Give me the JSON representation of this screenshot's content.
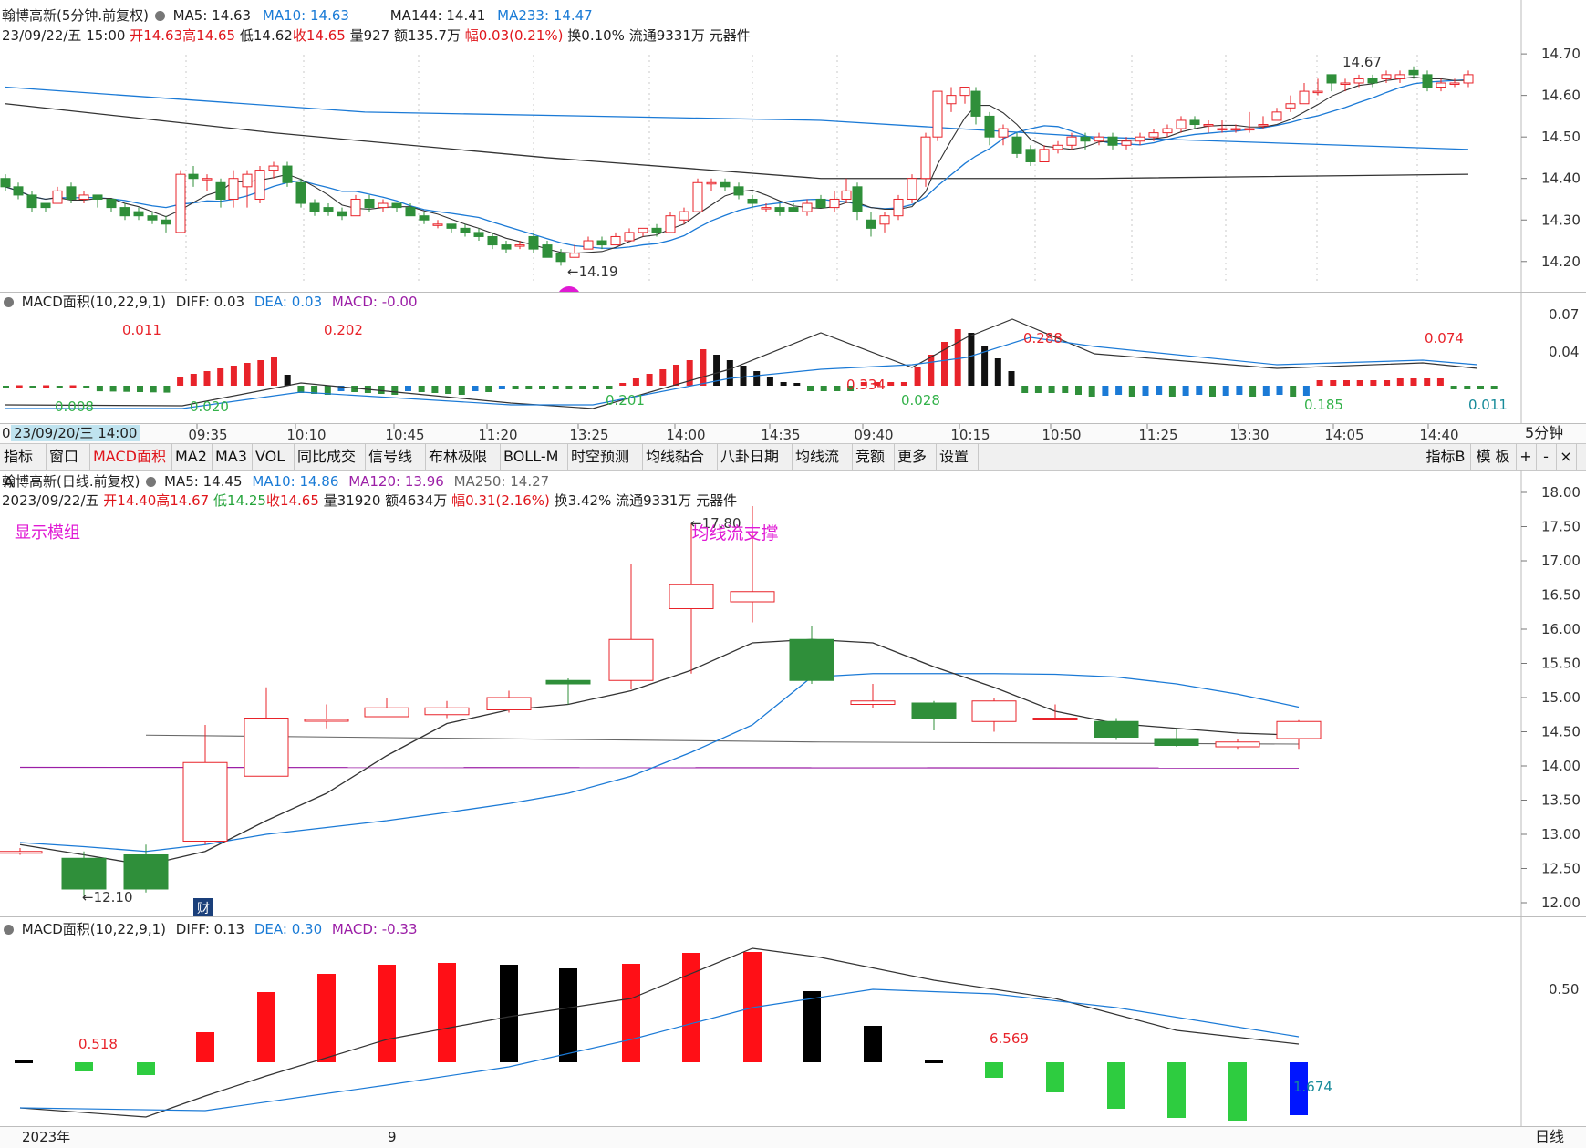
{
  "intraday": {
    "title": "翰博高新(5分钟.前复权)",
    "ma": [
      {
        "label": "MA5: 14.63",
        "color": "#222222"
      },
      {
        "label": "MA10: 14.63",
        "color": "#1a7bd6"
      },
      {
        "label": "MA144: 14.41",
        "color": "#222222"
      },
      {
        "label": "MA233: 14.47",
        "color": "#1a7bd6"
      }
    ],
    "info_date": "23/09/22/五 15:00",
    "info_open": "开14.63",
    "info_high": "高14.65",
    "info_low": "低14.62",
    "info_close": "收14.65",
    "info_vol": "量927",
    "info_amount": "额135.7万",
    "info_range": "幅0.03(0.21%)",
    "info_turnover": "换0.10%",
    "info_float": "流通9331万",
    "info_sector": "元器件",
    "y_ticks": [
      "14.70",
      "14.60",
      "14.50",
      "14.40",
      "14.30",
      "14.20"
    ],
    "low_label": "←14.19",
    "high_label": "14.67",
    "marker": "1"
  },
  "macd_intraday": {
    "title": "MACD面积(10,22,9,1)",
    "diff": "DIFF: 0.03",
    "dea": "DEA: 0.03",
    "macd": "MACD: -0.00",
    "y_ticks": [
      "0.07",
      "0.04"
    ],
    "labels_red": [
      "0.011",
      "0.202",
      "0.334",
      "0.288",
      "0.074"
    ],
    "labels_green": [
      "0.008",
      "0.020",
      "0.201",
      "0.028",
      "0.185"
    ],
    "label_teal": "0.011"
  },
  "time_axis": {
    "cursor_label": "23/09/20/三 14:00",
    "cursor_prefix": "0",
    "ticks": [
      "09:35",
      "10:10",
      "10:45",
      "11:20",
      "13:25",
      "14:00",
      "14:35",
      "09:40",
      "10:15",
      "10:50",
      "11:25",
      "13:30",
      "14:05",
      "14:40"
    ],
    "period": "5分钟"
  },
  "toolbar": {
    "tabs": [
      "指标A",
      "窗口",
      "MACD面积",
      "MA2",
      "MA3",
      "VOL",
      "同比成交",
      "信号线",
      "布林极限",
      "BOLL-M",
      "时空预测",
      "均线黏合",
      "八卦日期",
      "均线流",
      "竞额",
      "更多",
      "设置"
    ],
    "active": "MACD面积",
    "right": [
      "指标B",
      "模 板",
      "+",
      "-",
      "×"
    ]
  },
  "daily": {
    "title": "翰博高新(日线.前复权)",
    "ma": [
      {
        "label": "MA5: 14.45",
        "color": "#222222"
      },
      {
        "label": "MA10: 14.86",
        "color": "#1a7bd6"
      },
      {
        "label": "MA120: 13.96",
        "color": "#9b1ea6"
      },
      {
        "label": "MA250: 14.27",
        "color": "#555555"
      }
    ],
    "info_date": "2023/09/22/五",
    "info_open": "开14.40",
    "info_high": "高14.67",
    "info_low": "低14.25",
    "info_close": "收14.65",
    "info_vol": "量31920",
    "info_amount": "额4634万",
    "info_range": "幅0.31(2.16%)",
    "info_turnover": "换3.42%",
    "info_float": "流通9331万",
    "info_sector": "元器件",
    "y_ticks": [
      "18.00",
      "17.50",
      "17.00",
      "16.50",
      "16.00",
      "15.50",
      "15.00",
      "14.50",
      "14.00",
      "13.50",
      "13.00",
      "12.50",
      "12.00"
    ],
    "module_label": "显示模组",
    "support_label": "均线流支撑",
    "high_label": "←17.80",
    "low_label": "←12.10",
    "cai_badge": "财"
  },
  "macd_daily": {
    "title": "MACD面积(10,22,9,1)",
    "diff": "DIFF: 0.13",
    "dea": "DEA: 0.30",
    "macd": "MACD: -0.33",
    "y_tick": "0.50",
    "label_red_1": "0.518",
    "label_red_2": "6.569",
    "label_teal": "1.674"
  },
  "bottom_axis": {
    "year": "2023年",
    "month": "9",
    "period": "日线"
  }
}
